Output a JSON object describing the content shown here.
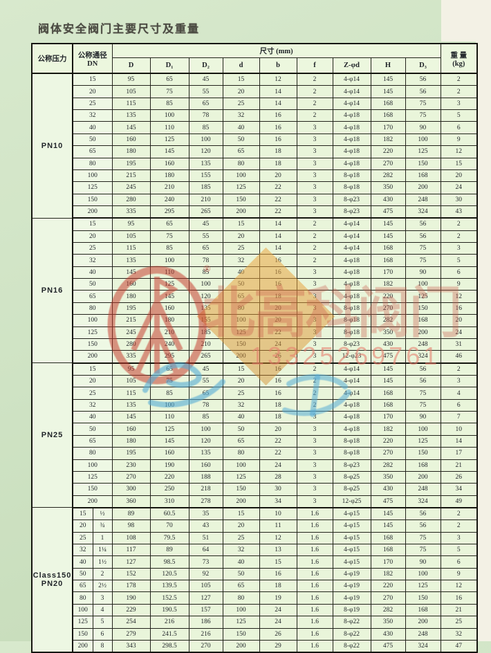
{
  "title": "阀体安全阀门主要尺寸及重量",
  "colors": {
    "page_bg": "#cfe3c4",
    "cell_bg": "#e9f5da",
    "margin_cream": "#f3f1e5",
    "grid_line": "#15150f",
    "logo_red": "#c5382b",
    "diamond_orange": "#e5a03c",
    "brand_red": "rgba(201,88,72,0.34)",
    "script_blue": "rgba(85,172,214,0.6)"
  },
  "table": {
    "headers": {
      "pressure": "公称压力",
      "dn_line1": "公称通径",
      "dn_line2": "DN",
      "size_group": "尺寸 (mm)",
      "weight_line1": "重 量",
      "weight_line2": "(kg)",
      "columns": [
        "D",
        "D₁",
        "D₂",
        "d",
        "b",
        "f",
        "Z-φd",
        "H",
        "D₃"
      ]
    },
    "sections": [
      {
        "label_lines": [
          "PN10"
        ],
        "rows": [
          [
            "15",
            "95",
            "65",
            "45",
            "15",
            "12",
            "2",
            "4-φ14",
            "145",
            "56",
            "2"
          ],
          [
            "20",
            "105",
            "75",
            "55",
            "20",
            "14",
            "2",
            "4-φ14",
            "145",
            "56",
            "2"
          ],
          [
            "25",
            "115",
            "85",
            "65",
            "25",
            "14",
            "2",
            "4-φ14",
            "168",
            "75",
            "3"
          ],
          [
            "32",
            "135",
            "100",
            "78",
            "32",
            "16",
            "2",
            "4-φ18",
            "168",
            "75",
            "5"
          ],
          [
            "40",
            "145",
            "110",
            "85",
            "40",
            "16",
            "3",
            "4-φ18",
            "170",
            "90",
            "6"
          ],
          [
            "50",
            "160",
            "125",
            "100",
            "50",
            "16",
            "3",
            "4-φ18",
            "182",
            "100",
            "9"
          ],
          [
            "65",
            "180",
            "145",
            "120",
            "65",
            "18",
            "3",
            "4-φ18",
            "220",
            "125",
            "12"
          ],
          [
            "80",
            "195",
            "160",
            "135",
            "80",
            "18",
            "3",
            "4-φ18",
            "270",
            "150",
            "15"
          ],
          [
            "100",
            "215",
            "180",
            "155",
            "100",
            "20",
            "3",
            "8-φ18",
            "282",
            "168",
            "20"
          ],
          [
            "125",
            "245",
            "210",
            "185",
            "125",
            "22",
            "3",
            "8-φ18",
            "350",
            "200",
            "24"
          ],
          [
            "150",
            "280",
            "240",
            "210",
            "150",
            "22",
            "3",
            "8-φ23",
            "430",
            "248",
            "30"
          ],
          [
            "200",
            "335",
            "295",
            "265",
            "200",
            "22",
            "3",
            "8-φ23",
            "475",
            "324",
            "43"
          ]
        ]
      },
      {
        "label_lines": [
          "PN16"
        ],
        "rows": [
          [
            "15",
            "95",
            "65",
            "45",
            "15",
            "14",
            "2",
            "4-φ14",
            "145",
            "56",
            "2"
          ],
          [
            "20",
            "105",
            "75",
            "55",
            "20",
            "14",
            "2",
            "4-φ14",
            "145",
            "56",
            "2"
          ],
          [
            "25",
            "115",
            "85",
            "65",
            "25",
            "14",
            "2",
            "4-φ14",
            "168",
            "75",
            "3"
          ],
          [
            "32",
            "135",
            "100",
            "78",
            "32",
            "16",
            "2",
            "4-φ18",
            "168",
            "75",
            "5"
          ],
          [
            "40",
            "145",
            "110",
            "85",
            "40",
            "16",
            "3",
            "4-φ18",
            "170",
            "90",
            "6"
          ],
          [
            "50",
            "160",
            "125",
            "100",
            "50",
            "16",
            "3",
            "4-φ18",
            "182",
            "100",
            "9"
          ],
          [
            "65",
            "180",
            "145",
            "120",
            "65",
            "18",
            "3",
            "4-φ18",
            "220",
            "125",
            "12"
          ],
          [
            "80",
            "195",
            "160",
            "135",
            "80",
            "20",
            "3",
            "8-φ18",
            "270",
            "150",
            "16"
          ],
          [
            "100",
            "215",
            "180",
            "155",
            "100",
            "20",
            "3",
            "8-φ18",
            "282",
            "168",
            "20"
          ],
          [
            "125",
            "245",
            "210",
            "185",
            "125",
            "22",
            "3",
            "8-φ18",
            "350",
            "200",
            "24"
          ],
          [
            "150",
            "280",
            "240",
            "210",
            "150",
            "24",
            "3",
            "8-φ23",
            "430",
            "248",
            "31"
          ],
          [
            "200",
            "335",
            "295",
            "265",
            "200",
            "26",
            "3",
            "12-φ23",
            "475",
            "324",
            "46"
          ]
        ]
      },
      {
        "label_lines": [
          "PN25"
        ],
        "rows": [
          [
            "15",
            "95",
            "65",
            "45",
            "15",
            "16",
            "2",
            "4-φ14",
            "145",
            "56",
            "2"
          ],
          [
            "20",
            "105",
            "75",
            "55",
            "20",
            "16",
            "2",
            "4-φ14",
            "145",
            "56",
            "3"
          ],
          [
            "25",
            "115",
            "85",
            "65",
            "25",
            "16",
            "2",
            "4-φ14",
            "168",
            "75",
            "4"
          ],
          [
            "32",
            "135",
            "100",
            "78",
            "32",
            "18",
            "2",
            "4-φ18",
            "168",
            "75",
            "6"
          ],
          [
            "40",
            "145",
            "110",
            "85",
            "40",
            "18",
            "3",
            "4-φ18",
            "170",
            "90",
            "7"
          ],
          [
            "50",
            "160",
            "125",
            "100",
            "50",
            "20",
            "3",
            "4-φ18",
            "182",
            "100",
            "10"
          ],
          [
            "65",
            "180",
            "145",
            "120",
            "65",
            "22",
            "3",
            "8-φ18",
            "220",
            "125",
            "14"
          ],
          [
            "80",
            "195",
            "160",
            "135",
            "80",
            "22",
            "3",
            "8-φ18",
            "270",
            "150",
            "17"
          ],
          [
            "100",
            "230",
            "190",
            "160",
            "100",
            "24",
            "3",
            "8-φ23",
            "282",
            "168",
            "21"
          ],
          [
            "125",
            "270",
            "220",
            "188",
            "125",
            "28",
            "3",
            "8-φ25",
            "350",
            "200",
            "26"
          ],
          [
            "150",
            "300",
            "250",
            "218",
            "150",
            "30",
            "3",
            "8-φ25",
            "430",
            "248",
            "34"
          ],
          [
            "200",
            "360",
            "310",
            "278",
            "200",
            "34",
            "3",
            "12-φ25",
            "475",
            "324",
            "49"
          ]
        ]
      },
      {
        "label_lines": [
          "Class150",
          "PN20"
        ],
        "rows": [
          [
            "15",
            "½",
            "89",
            "60.5",
            "35",
            "15",
            "10",
            "1.6",
            "4-φ15",
            "145",
            "56",
            "2"
          ],
          [
            "20",
            "¾",
            "98",
            "70",
            "43",
            "20",
            "11",
            "1.6",
            "4-φ15",
            "145",
            "56",
            "2"
          ],
          [
            "25",
            "1",
            "108",
            "79.5",
            "51",
            "25",
            "12",
            "1.6",
            "4-φ15",
            "168",
            "75",
            "3"
          ],
          [
            "32",
            "1¼",
            "117",
            "89",
            "64",
            "32",
            "13",
            "1.6",
            "4-φ15",
            "168",
            "75",
            "5"
          ],
          [
            "40",
            "1½",
            "127",
            "98.5",
            "73",
            "40",
            "15",
            "1.6",
            "4-φ15",
            "170",
            "90",
            "6"
          ],
          [
            "50",
            "2",
            "152",
            "120.5",
            "92",
            "50",
            "16",
            "1.6",
            "4-φ19",
            "182",
            "100",
            "9"
          ],
          [
            "65",
            "2½",
            "178",
            "139.5",
            "105",
            "65",
            "18",
            "1.6",
            "4-φ19",
            "220",
            "125",
            "12"
          ],
          [
            "80",
            "3",
            "190",
            "152.5",
            "127",
            "80",
            "19",
            "1.6",
            "4-φ19",
            "270",
            "150",
            "16"
          ],
          [
            "100",
            "4",
            "229",
            "190.5",
            "157",
            "100",
            "24",
            "1.6",
            "8-φ19",
            "282",
            "168",
            "21"
          ],
          [
            "125",
            "5",
            "254",
            "216",
            "186",
            "125",
            "24",
            "1.6",
            "8-φ22",
            "350",
            "200",
            "25"
          ],
          [
            "150",
            "6",
            "279",
            "241.5",
            "216",
            "150",
            "26",
            "1.6",
            "8-φ22",
            "430",
            "248",
            "32"
          ],
          [
            "200",
            "8",
            "343",
            "298.5",
            "270",
            "200",
            "29",
            "1.6",
            "8-φ22",
            "475",
            "324",
            "47"
          ]
        ]
      }
    ]
  },
  "watermark": {
    "brand": "北高科阀门",
    "phone": "13325269761",
    "registered": "®"
  }
}
